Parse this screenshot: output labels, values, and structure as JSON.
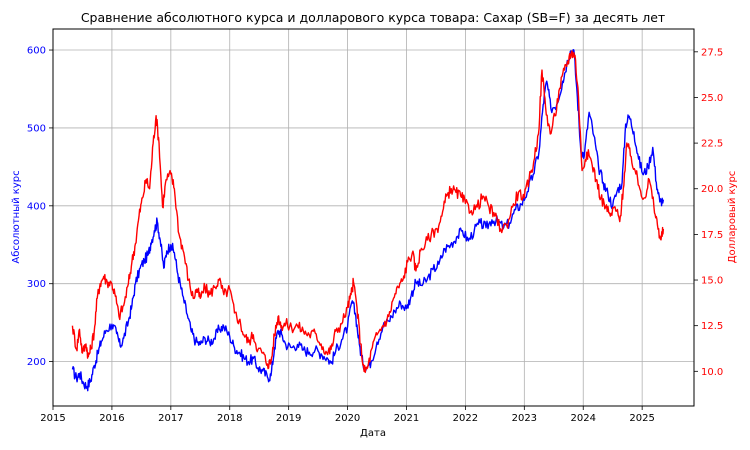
{
  "chart_data": {
    "type": "line",
    "title": "Сравнение абсолютного курса и долларового курса товара: Сахар (SB=F) за десять лет",
    "xlabel": "Дата",
    "xlim": [
      2015.0,
      2025.88
    ],
    "grid": true,
    "colors": {
      "left": "#0000ff",
      "right": "#ff0000",
      "grid": "#b0b0b0",
      "axes": "#000000"
    },
    "x_ticks": [
      "2015",
      "2016",
      "2017",
      "2018",
      "2019",
      "2020",
      "2021",
      "2022",
      "2023",
      "2024",
      "2025"
    ],
    "left_axis": {
      "label": "Абсолютный курс",
      "ylim": [
        143,
        627
      ],
      "ticks": [
        "200",
        "300",
        "400",
        "500",
        "600"
      ]
    },
    "right_axis": {
      "label": "Долларовый курс",
      "ylim": [
        8.1,
        28.75
      ],
      "ticks": [
        "10.0",
        "12.5",
        "15.0",
        "17.5",
        "20.0",
        "22.5",
        "25.0",
        "27.5"
      ]
    },
    "series": [
      {
        "axis": "left",
        "color": "#0000ff",
        "points": [
          [
            2015.33,
            190
          ],
          [
            2015.4,
            178
          ],
          [
            2015.45,
            185
          ],
          [
            2015.52,
            172
          ],
          [
            2015.58,
            168
          ],
          [
            2015.64,
            176
          ],
          [
            2015.7,
            195
          ],
          [
            2015.76,
            210
          ],
          [
            2015.82,
            226
          ],
          [
            2015.9,
            240
          ],
          [
            2016.0,
            248
          ],
          [
            2016.08,
            236
          ],
          [
            2016.14,
            220
          ],
          [
            2016.2,
            230
          ],
          [
            2016.28,
            252
          ],
          [
            2016.34,
            272
          ],
          [
            2016.4,
            300
          ],
          [
            2016.48,
            320
          ],
          [
            2016.55,
            330
          ],
          [
            2016.62,
            338
          ],
          [
            2016.66,
            352
          ],
          [
            2016.72,
            368
          ],
          [
            2016.77,
            380
          ],
          [
            2016.82,
            356
          ],
          [
            2016.88,
            320
          ],
          [
            2016.93,
            342
          ],
          [
            2017.0,
            350
          ],
          [
            2017.06,
            340
          ],
          [
            2017.12,
            312
          ],
          [
            2017.2,
            285
          ],
          [
            2017.28,
            260
          ],
          [
            2017.35,
            238
          ],
          [
            2017.42,
            226
          ],
          [
            2017.5,
            222
          ],
          [
            2017.58,
            230
          ],
          [
            2017.66,
            225
          ],
          [
            2017.74,
            230
          ],
          [
            2017.82,
            242
          ],
          [
            2017.9,
            245
          ],
          [
            2018.0,
            232
          ],
          [
            2018.08,
            218
          ],
          [
            2018.16,
            212
          ],
          [
            2018.24,
            205
          ],
          [
            2018.32,
            200
          ],
          [
            2018.4,
            204
          ],
          [
            2018.48,
            192
          ],
          [
            2018.56,
            188
          ],
          [
            2018.64,
            180
          ],
          [
            2018.7,
            182
          ],
          [
            2018.76,
            218
          ],
          [
            2018.82,
            240
          ],
          [
            2018.88,
            235
          ],
          [
            2018.95,
            222
          ],
          [
            2019.05,
            218
          ],
          [
            2019.15,
            222
          ],
          [
            2019.25,
            215
          ],
          [
            2019.35,
            212
          ],
          [
            2019.45,
            215
          ],
          [
            2019.55,
            210
          ],
          [
            2019.65,
            205
          ],
          [
            2019.72,
            198
          ],
          [
            2019.8,
            214
          ],
          [
            2019.9,
            228
          ],
          [
            2020.0,
            245
          ],
          [
            2020.08,
            278
          ],
          [
            2020.14,
            258
          ],
          [
            2020.2,
            222
          ],
          [
            2020.26,
            197
          ],
          [
            2020.32,
            192
          ],
          [
            2020.4,
            200
          ],
          [
            2020.5,
            225
          ],
          [
            2020.6,
            245
          ],
          [
            2020.7,
            252
          ],
          [
            2020.8,
            265
          ],
          [
            2020.9,
            275
          ],
          [
            2021.0,
            268
          ],
          [
            2021.08,
            285
          ],
          [
            2021.16,
            302
          ],
          [
            2021.25,
            298
          ],
          [
            2021.35,
            305
          ],
          [
            2021.45,
            318
          ],
          [
            2021.55,
            325
          ],
          [
            2021.65,
            345
          ],
          [
            2021.75,
            350
          ],
          [
            2021.85,
            360
          ],
          [
            2021.95,
            368
          ],
          [
            2022.05,
            355
          ],
          [
            2022.15,
            368
          ],
          [
            2022.25,
            378
          ],
          [
            2022.35,
            372
          ],
          [
            2022.45,
            382
          ],
          [
            2022.55,
            380
          ],
          [
            2022.65,
            372
          ],
          [
            2022.75,
            378
          ],
          [
            2022.85,
            395
          ],
          [
            2022.95,
            402
          ],
          [
            2023.05,
            418
          ],
          [
            2023.15,
            440
          ],
          [
            2023.25,
            470
          ],
          [
            2023.32,
            530
          ],
          [
            2023.38,
            560
          ],
          [
            2023.45,
            525
          ],
          [
            2023.55,
            530
          ],
          [
            2023.65,
            560
          ],
          [
            2023.72,
            582
          ],
          [
            2023.78,
            598
          ],
          [
            2023.84,
            600
          ],
          [
            2023.9,
            540
          ],
          [
            2023.96,
            470
          ],
          [
            2024.02,
            465
          ],
          [
            2024.1,
            520
          ],
          [
            2024.18,
            490
          ],
          [
            2024.26,
            450
          ],
          [
            2024.34,
            430
          ],
          [
            2024.42,
            415
          ],
          [
            2024.5,
            400
          ],
          [
            2024.58,
            420
          ],
          [
            2024.66,
            430
          ],
          [
            2024.72,
            505
          ],
          [
            2024.78,
            515
          ],
          [
            2024.86,
            495
          ],
          [
            2024.94,
            460
          ],
          [
            2025.02,
            440
          ],
          [
            2025.1,
            450
          ],
          [
            2025.18,
            475
          ],
          [
            2025.24,
            430
          ],
          [
            2025.3,
            405
          ],
          [
            2025.36,
            408
          ]
        ]
      },
      {
        "axis": "right",
        "color": "#ff0000",
        "points": [
          [
            2015.33,
            12.5
          ],
          [
            2015.4,
            11.2
          ],
          [
            2015.45,
            12.3
          ],
          [
            2015.5,
            11.0
          ],
          [
            2015.56,
            11.5
          ],
          [
            2015.6,
            10.8
          ],
          [
            2015.64,
            11.2
          ],
          [
            2015.7,
            12.2
          ],
          [
            2015.75,
            14.0
          ],
          [
            2015.8,
            14.8
          ],
          [
            2015.86,
            15.2
          ],
          [
            2015.92,
            14.9
          ],
          [
            2016.0,
            14.8
          ],
          [
            2016.06,
            14.1
          ],
          [
            2016.12,
            13.0
          ],
          [
            2016.2,
            13.6
          ],
          [
            2016.28,
            14.8
          ],
          [
            2016.34,
            16.0
          ],
          [
            2016.4,
            17.0
          ],
          [
            2016.46,
            18.5
          ],
          [
            2016.52,
            19.5
          ],
          [
            2016.58,
            20.5
          ],
          [
            2016.64,
            20.0
          ],
          [
            2016.7,
            22.5
          ],
          [
            2016.75,
            24.0
          ],
          [
            2016.8,
            22.5
          ],
          [
            2016.86,
            19.0
          ],
          [
            2016.92,
            20.5
          ],
          [
            2017.0,
            20.8
          ],
          [
            2017.06,
            20.0
          ],
          [
            2017.14,
            17.5
          ],
          [
            2017.22,
            16.5
          ],
          [
            2017.3,
            15.0
          ],
          [
            2017.38,
            14.0
          ],
          [
            2017.44,
            14.5
          ],
          [
            2017.5,
            14.0
          ],
          [
            2017.58,
            14.6
          ],
          [
            2017.66,
            14.2
          ],
          [
            2017.74,
            14.6
          ],
          [
            2017.82,
            15.0
          ],
          [
            2017.9,
            14.2
          ],
          [
            2018.0,
            14.5
          ],
          [
            2018.08,
            13.2
          ],
          [
            2018.16,
            12.8
          ],
          [
            2018.24,
            12.0
          ],
          [
            2018.32,
            11.6
          ],
          [
            2018.4,
            12.0
          ],
          [
            2018.48,
            11.2
          ],
          [
            2018.56,
            11.0
          ],
          [
            2018.64,
            10.4
          ],
          [
            2018.7,
            10.5
          ],
          [
            2018.76,
            12.0
          ],
          [
            2018.82,
            13.0
          ],
          [
            2018.88,
            12.5
          ],
          [
            2018.95,
            12.6
          ],
          [
            2019.05,
            12.4
          ],
          [
            2019.15,
            12.5
          ],
          [
            2019.25,
            12.2
          ],
          [
            2019.35,
            12.0
          ],
          [
            2019.45,
            12.1
          ],
          [
            2019.55,
            11.5
          ],
          [
            2019.65,
            11.0
          ],
          [
            2019.72,
            11.2
          ],
          [
            2019.8,
            12.2
          ],
          [
            2019.9,
            12.6
          ],
          [
            2020.0,
            13.5
          ],
          [
            2020.06,
            14.2
          ],
          [
            2020.1,
            14.9
          ],
          [
            2020.16,
            13.5
          ],
          [
            2020.22,
            11.5
          ],
          [
            2020.28,
            10.0
          ],
          [
            2020.34,
            10.2
          ],
          [
            2020.42,
            11.3
          ],
          [
            2020.5,
            12.0
          ],
          [
            2020.6,
            12.5
          ],
          [
            2020.7,
            13.0
          ],
          [
            2020.78,
            14.0
          ],
          [
            2020.86,
            14.6
          ],
          [
            2020.94,
            15.0
          ],
          [
            2021.02,
            16.0
          ],
          [
            2021.1,
            16.5
          ],
          [
            2021.16,
            15.5
          ],
          [
            2021.24,
            16.6
          ],
          [
            2021.32,
            17.0
          ],
          [
            2021.42,
            17.5
          ],
          [
            2021.52,
            17.8
          ],
          [
            2021.6,
            18.5
          ],
          [
            2021.68,
            19.6
          ],
          [
            2021.76,
            20.0
          ],
          [
            2021.84,
            19.8
          ],
          [
            2021.92,
            19.6
          ],
          [
            2022.0,
            19.2
          ],
          [
            2022.1,
            18.8
          ],
          [
            2022.2,
            19.0
          ],
          [
            2022.3,
            19.6
          ],
          [
            2022.4,
            19.0
          ],
          [
            2022.5,
            18.5
          ],
          [
            2022.6,
            17.8
          ],
          [
            2022.7,
            18.0
          ],
          [
            2022.8,
            19.0
          ],
          [
            2022.9,
            19.8
          ],
          [
            2023.0,
            19.5
          ],
          [
            2023.08,
            20.5
          ],
          [
            2023.16,
            21.5
          ],
          [
            2023.24,
            23.0
          ],
          [
            2023.3,
            26.5
          ],
          [
            2023.36,
            24.5
          ],
          [
            2023.44,
            23.0
          ],
          [
            2023.52,
            24.0
          ],
          [
            2023.6,
            25.5
          ],
          [
            2023.68,
            26.5
          ],
          [
            2023.74,
            27.0
          ],
          [
            2023.8,
            27.5
          ],
          [
            2023.86,
            27.3
          ],
          [
            2023.92,
            25.0
          ],
          [
            2023.98,
            21.0
          ],
          [
            2024.06,
            22.0
          ],
          [
            2024.14,
            21.5
          ],
          [
            2024.22,
            20.5
          ],
          [
            2024.3,
            19.5
          ],
          [
            2024.38,
            19.0
          ],
          [
            2024.46,
            18.5
          ],
          [
            2024.54,
            19.0
          ],
          [
            2024.62,
            18.2
          ],
          [
            2024.68,
            20.0
          ],
          [
            2024.74,
            22.5
          ],
          [
            2024.8,
            21.8
          ],
          [
            2024.88,
            21.0
          ],
          [
            2024.96,
            20.0
          ],
          [
            2025.04,
            19.5
          ],
          [
            2025.12,
            20.5
          ],
          [
            2025.2,
            19.0
          ],
          [
            2025.26,
            18.0
          ],
          [
            2025.32,
            17.2
          ],
          [
            2025.36,
            17.8
          ]
        ]
      }
    ]
  }
}
